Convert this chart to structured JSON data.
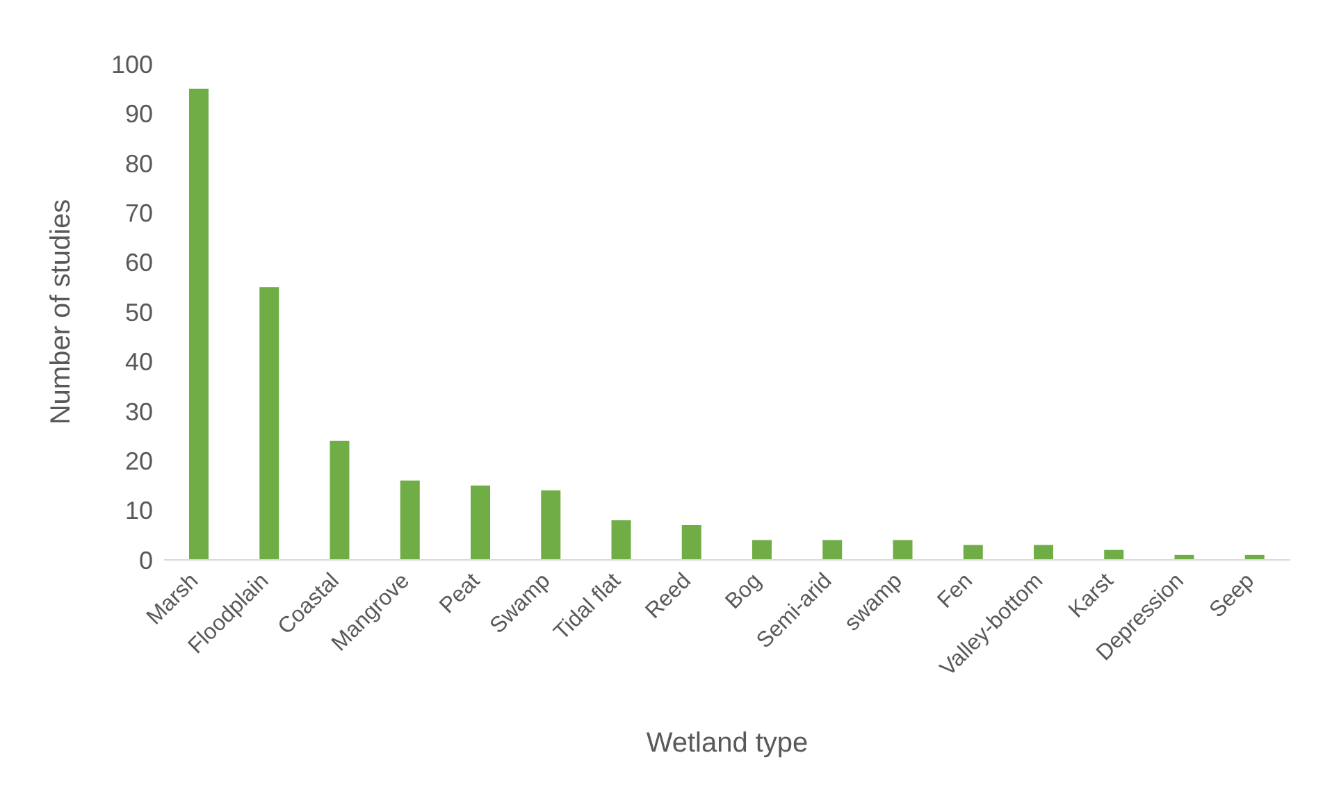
{
  "chart_data": {
    "type": "bar",
    "xlabel": "Wetland type",
    "ylabel": "Number of studies",
    "categories": [
      "Marsh",
      "Floodplain",
      "Coastal",
      "Mangrove",
      "Peat",
      "Swamp",
      "Tidal flat",
      "Reed",
      "Bog",
      "Semi-arid",
      "swamp",
      "Fen",
      "Valley-bottom",
      "Karst",
      "Depression",
      "Seep"
    ],
    "values": [
      95,
      55,
      24,
      16,
      15,
      14,
      8,
      7,
      4,
      4,
      4,
      3,
      3,
      2,
      1,
      1
    ],
    "color": "#70ad47",
    "ylim": [
      0,
      100
    ],
    "yticks": [
      0,
      10,
      20,
      30,
      40,
      50,
      60,
      70,
      80,
      90,
      100
    ],
    "grid": false,
    "legend": false
  }
}
